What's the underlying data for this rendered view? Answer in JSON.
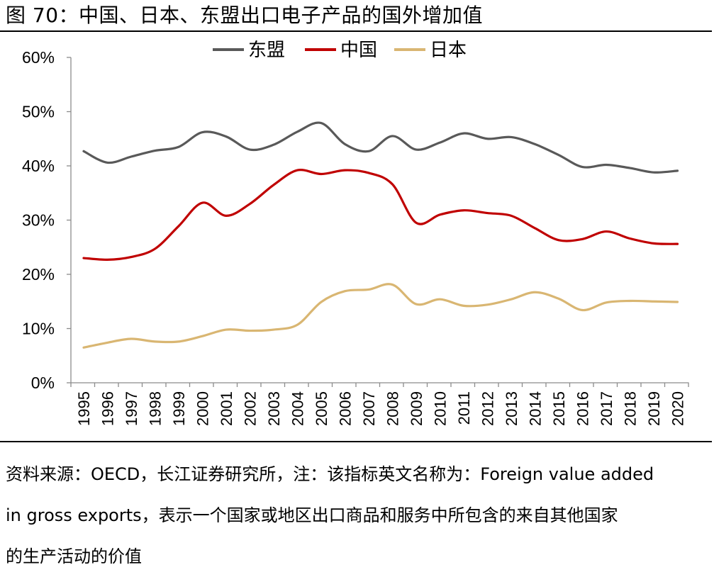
{
  "title": "图 70：中国、日本、东盟出口电子产品的国外增加值",
  "source_note_lines": [
    "资料来源：OECD，长江证券研究所，注：该指标英文名称为：Foreign value added",
    "in gross exports，表示一个国家或地区出口商品和服务中所包含的来自其他国家",
    "的生产活动的价值"
  ],
  "chart_data": {
    "type": "line",
    "categories": [
      "1995",
      "1996",
      "1997",
      "1998",
      "1999",
      "2000",
      "2001",
      "2002",
      "2003",
      "2004",
      "2005",
      "2006",
      "2007",
      "2008",
      "2009",
      "2010",
      "2011",
      "2012",
      "2013",
      "2014",
      "2015",
      "2016",
      "2017",
      "2018",
      "2019",
      "2020"
    ],
    "ylim": [
      0,
      60
    ],
    "yticks": [
      "0%",
      "10%",
      "20%",
      "30%",
      "40%",
      "50%",
      "60%"
    ],
    "legend_position": "top",
    "grid": false,
    "series": [
      {
        "name": "东盟",
        "color": "#595959",
        "values": [
          42.7,
          40.6,
          41.7,
          42.8,
          43.5,
          46.2,
          45.4,
          43.0,
          43.9,
          46.3,
          47.9,
          44.0,
          42.7,
          45.5,
          43.0,
          44.3,
          46.0,
          45.0,
          45.3,
          44.0,
          42.0,
          39.8,
          40.2,
          39.6,
          38.8,
          39.1
        ]
      },
      {
        "name": "中国",
        "color": "#C00000",
        "values": [
          23.0,
          22.7,
          23.2,
          24.7,
          28.9,
          33.2,
          30.8,
          33.0,
          36.5,
          39.2,
          38.5,
          39.2,
          38.7,
          36.6,
          29.5,
          31.0,
          31.8,
          31.3,
          30.8,
          28.5,
          26.3,
          26.5,
          27.9,
          26.6,
          25.7,
          25.6
        ]
      },
      {
        "name": "日本",
        "color": "#D9B672",
        "values": [
          6.5,
          7.4,
          8.1,
          7.6,
          7.6,
          8.6,
          9.8,
          9.6,
          9.8,
          10.7,
          14.9,
          16.9,
          17.2,
          18.1,
          14.5,
          15.4,
          14.2,
          14.4,
          15.4,
          16.7,
          15.5,
          13.4,
          14.8,
          15.1,
          15.0,
          14.9
        ]
      }
    ]
  }
}
